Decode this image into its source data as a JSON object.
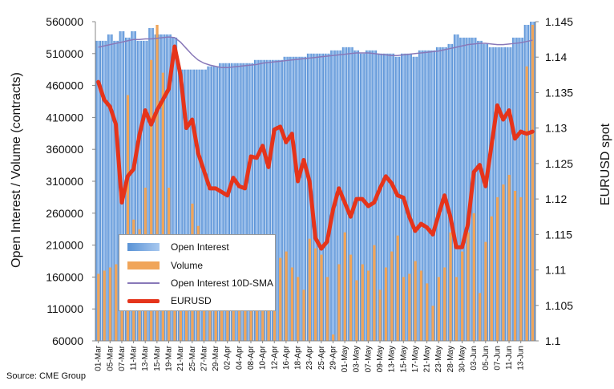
{
  "source": "Source: CME Group",
  "chart_data": {
    "type": "bar",
    "ylabel_left": "Open Interest / Volume (contracts)",
    "ylabel_right": "EURUSD spot",
    "y_left_range": [
      60000,
      560000
    ],
    "y_left_ticks": [
      "560000",
      "510000",
      "460000",
      "410000",
      "360000",
      "310000",
      "260000",
      "210000",
      "160000",
      "110000",
      "60000"
    ],
    "y_right_range": [
      1.1,
      1.145
    ],
    "y_right_ticks": [
      "1.145",
      "1.14",
      "1.135",
      "1.13",
      "1.125",
      "1.12",
      "1.115",
      "1.11",
      "1.105",
      "1.1"
    ],
    "x_tick_labels": [
      "01-Mar",
      "05-Mar",
      "07-Mar",
      "11-Mar",
      "13-Mar",
      "15-Mar",
      "19-Mar",
      "21-Mar",
      "25-Mar",
      "27-Mar",
      "29-Mar",
      "02-Apr",
      "04-Apr",
      "08-Apr",
      "10-Apr",
      "12-Apr",
      "16-Apr",
      "18-Apr",
      "23-Apr",
      "25-Apr",
      "29-Apr",
      "01-May",
      "03-May",
      "07-May",
      "09-May",
      "13-May",
      "15-May",
      "17-May",
      "21-May",
      "23-May",
      "28-May",
      "30-May",
      "03-Jun",
      "05-Jun",
      "07-Jun",
      "11-Jun",
      "13-Jun"
    ],
    "legend_position": "bottom-left",
    "legend": [
      "Open Interest",
      "Volume",
      "Open Interest 10D-SMA",
      "EURUSD"
    ],
    "colors": {
      "open_interest": "#6fa3e0",
      "volume": "#f0a55a",
      "sma": "#8878b8",
      "eurusd": "#e5341b"
    },
    "series": [
      {
        "name": "Open Interest",
        "axis": "left",
        "values": [
          530000,
          530000,
          540000,
          530000,
          545000,
          535000,
          545000,
          530000,
          530000,
          550000,
          540000,
          540000,
          540000,
          535000,
          485000,
          485000,
          485000,
          485000,
          485000,
          490000,
          490000,
          495000,
          495000,
          495000,
          495000,
          495000,
          495000,
          500000,
          500000,
          500000,
          500000,
          500000,
          505000,
          505000,
          505000,
          505000,
          510000,
          510000,
          510000,
          510000,
          515000,
          515000,
          520000,
          520000,
          515000,
          510000,
          515000,
          515000,
          510000,
          510000,
          510000,
          505000,
          510000,
          510000,
          505000,
          515000,
          515000,
          515000,
          520000,
          520000,
          525000,
          540000,
          535000,
          535000,
          535000,
          530000,
          525000,
          520000,
          520000,
          520000,
          520000,
          535000,
          535000,
          555000,
          560000
        ]
      },
      {
        "name": "Volume",
        "axis": "left",
        "values": [
          165000,
          170000,
          175000,
          180000,
          200000,
          445000,
          250000,
          235000,
          300000,
          500000,
          555000,
          480000,
          300000,
          190000,
          180000,
          210000,
          275000,
          240000,
          225000,
          195000,
          185000,
          175000,
          170000,
          160000,
          165000,
          150000,
          150000,
          130000,
          160000,
          185000,
          150000,
          190000,
          200000,
          175000,
          160000,
          140000,
          220000,
          205000,
          195000,
          160000,
          70000,
          180000,
          230000,
          195000,
          155000,
          180000,
          170000,
          210000,
          140000,
          175000,
          200000,
          225000,
          160000,
          165000,
          185000,
          170000,
          150000,
          115000,
          160000,
          175000,
          230000,
          160000,
          200000,
          230000,
          260000,
          135000,
          215000,
          255000,
          285000,
          305000,
          320000,
          295000,
          285000,
          490000,
          555000
        ]
      },
      {
        "name": "Open Interest 10D-SMA",
        "axis": "left",
        "values": [
          520000,
          522000,
          524000,
          526000,
          528000,
          530000,
          532000,
          532000,
          533000,
          533000,
          534000,
          535000,
          536000,
          535000,
          528000,
          518000,
          508000,
          500000,
          495000,
          492000,
          490000,
          488000,
          488000,
          489000,
          490000,
          491000,
          492000,
          493000,
          495000,
          496000,
          497000,
          498000,
          499000,
          500000,
          501000,
          502000,
          503000,
          504000,
          505000,
          506000,
          507000,
          508000,
          509000,
          510000,
          511000,
          511000,
          511000,
          510000,
          509000,
          508000,
          507000,
          507000,
          508000,
          509000,
          510000,
          511000,
          512000,
          513000,
          514000,
          516000,
          518000,
          520000,
          522000,
          524000,
          525000,
          526000,
          526000,
          525000,
          524000,
          524000,
          525000,
          526000,
          527000,
          529000,
          531000
        ]
      },
      {
        "name": "EURUSD",
        "axis": "right",
        "values": [
          1.1365,
          1.134,
          1.133,
          1.1305,
          1.1195,
          1.1232,
          1.1242,
          1.129,
          1.1325,
          1.1305,
          1.1325,
          1.134,
          1.1355,
          1.1415,
          1.1375,
          1.13,
          1.1312,
          1.1265,
          1.124,
          1.1215,
          1.1215,
          1.121,
          1.1205,
          1.123,
          1.1218,
          1.1215,
          1.126,
          1.1258,
          1.1275,
          1.1245,
          1.1298,
          1.1302,
          1.128,
          1.1292,
          1.1225,
          1.1255,
          1.1225,
          1.1145,
          1.113,
          1.114,
          1.1185,
          1.1215,
          1.1195,
          1.1175,
          1.12,
          1.12,
          1.119,
          1.1195,
          1.1215,
          1.1232,
          1.1222,
          1.1205,
          1.1202,
          1.1175,
          1.1155,
          1.1165,
          1.116,
          1.115,
          1.1178,
          1.1205,
          1.1175,
          1.1132,
          1.1132,
          1.1165,
          1.1238,
          1.1248,
          1.1218,
          1.1275,
          1.1332,
          1.1312,
          1.1325,
          1.1285,
          1.1295,
          1.1292,
          1.1295
        ]
      }
    ]
  }
}
